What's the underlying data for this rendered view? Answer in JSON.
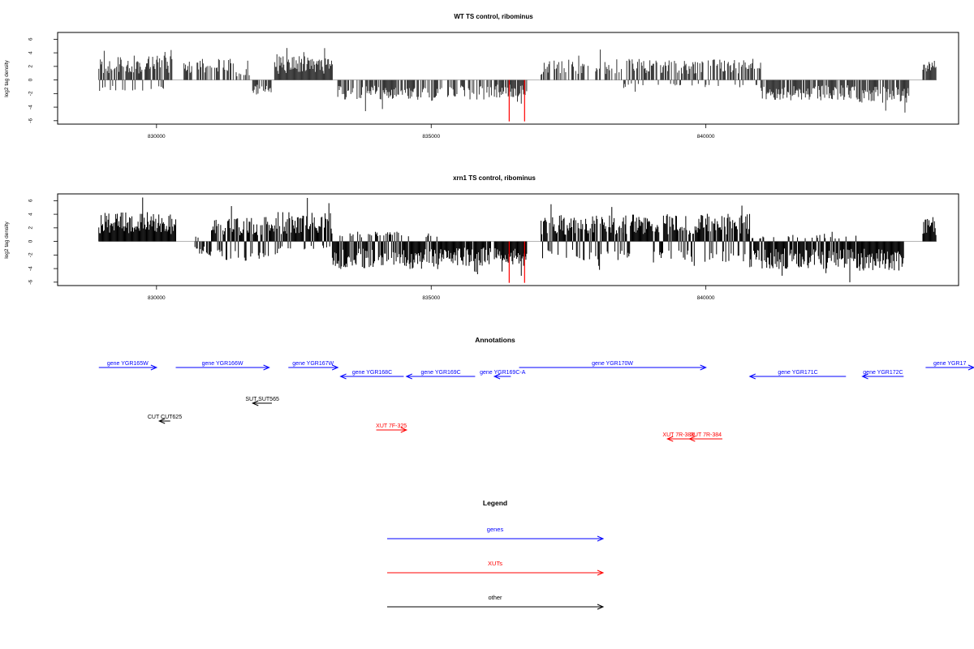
{
  "chart_data": [
    {
      "type": "bar",
      "title": "WT TS control, ribominus",
      "ylabel": "log2 tag density",
      "xlabel": "",
      "xlim": [
        828200,
        844600
      ],
      "ylim": [
        -6.5,
        7
      ],
      "y_ticks": [
        -6,
        -4,
        -2,
        0,
        2,
        4,
        6
      ],
      "x_ticks": [
        830000,
        835000,
        840000
      ],
      "x_tick_labels": [
        "830000",
        "835000",
        "840000"
      ],
      "bar_color": "#333333",
      "highlight_color": "#ff0000",
      "highlights": [
        {
          "x": 836420,
          "y": -6.1
        },
        {
          "x": 836700,
          "y": -6.1
        }
      ],
      "segments": [
        {
          "x0": 828950,
          "x1": 830300,
          "amp": 3.0,
          "min": -1.6,
          "density": 0.9,
          "seed": 11
        },
        {
          "x0": 830500,
          "x1": 831400,
          "amp": 2.6,
          "min": 0,
          "density": 0.6,
          "seed": 12
        },
        {
          "x0": 831450,
          "x1": 831700,
          "amp": 1.6,
          "min": 0,
          "density": 0.4,
          "seed": 13
        },
        {
          "x0": 831750,
          "x1": 832100,
          "amp": -2.0,
          "min": 0,
          "density": 0.6,
          "seed": 14
        },
        {
          "x0": 832150,
          "x1": 833200,
          "amp": 3.0,
          "min": 0,
          "density": 1.0,
          "seed": 15
        },
        {
          "x0": 833300,
          "x1": 835200,
          "amp": -2.6,
          "min": 0,
          "density": 0.7,
          "seed": 16
        },
        {
          "x0": 835300,
          "x1": 836100,
          "amp": -2.4,
          "min": 0,
          "density": 0.5,
          "seed": 17
        },
        {
          "x0": 836150,
          "x1": 836750,
          "amp": -2.2,
          "min": 0,
          "density": 0.9,
          "seed": 18
        },
        {
          "x0": 837000,
          "x1": 838300,
          "amp": 2.6,
          "min": 0,
          "density": 0.45,
          "seed": 19
        },
        {
          "x0": 838350,
          "x1": 841000,
          "amp": 2.6,
          "min": -1.0,
          "density": 0.7,
          "seed": 20
        },
        {
          "x0": 841000,
          "x1": 842700,
          "amp": -2.5,
          "min": 0,
          "density": 0.75,
          "seed": 21
        },
        {
          "x0": 842700,
          "x1": 843700,
          "amp": -2.8,
          "min": 0,
          "density": 0.8,
          "seed": 22
        },
        {
          "x0": 843950,
          "x1": 844200,
          "amp": 2.4,
          "min": 0,
          "density": 0.9,
          "seed": 23
        }
      ]
    },
    {
      "type": "bar",
      "title": "xrn1 TS control, ribominus",
      "ylabel": "log2 tag density",
      "xlabel": "",
      "xlim": [
        828200,
        844600
      ],
      "ylim": [
        -6.5,
        7
      ],
      "y_ticks": [
        -6,
        -4,
        -2,
        0,
        2,
        4,
        6
      ],
      "x_ticks": [
        830000,
        835000,
        840000
      ],
      "x_tick_labels": [
        "830000",
        "835000",
        "840000"
      ],
      "bar_color": "#000000",
      "highlight_color": "#ff0000",
      "highlights": [
        {
          "x": 836420,
          "y": -6.1
        },
        {
          "x": 836700,
          "y": -6.1
        }
      ],
      "segments": [
        {
          "x0": 828950,
          "x1": 830350,
          "amp": 3.6,
          "min": 0,
          "density": 1.0,
          "seed": 31
        },
        {
          "x0": 830700,
          "x1": 831000,
          "amp": -1.8,
          "min": 0.6,
          "density": 0.8,
          "seed": 32
        },
        {
          "x0": 831000,
          "x1": 832200,
          "amp": 3.0,
          "min": -2.4,
          "density": 1.0,
          "seed": 33
        },
        {
          "x0": 832200,
          "x1": 833200,
          "amp": 3.6,
          "min": -1.0,
          "density": 1.0,
          "seed": 34
        },
        {
          "x0": 833200,
          "x1": 835200,
          "amp": -3.4,
          "min": 1.2,
          "density": 1.0,
          "seed": 35
        },
        {
          "x0": 835200,
          "x1": 836100,
          "amp": -3.0,
          "min": 0,
          "density": 0.9,
          "seed": 36
        },
        {
          "x0": 836150,
          "x1": 836750,
          "amp": -3.0,
          "min": 0,
          "density": 1.0,
          "seed": 37
        },
        {
          "x0": 837000,
          "x1": 838500,
          "amp": 3.2,
          "min": -2.4,
          "density": 1.0,
          "seed": 38
        },
        {
          "x0": 838500,
          "x1": 840800,
          "amp": 3.4,
          "min": -2.6,
          "density": 1.0,
          "seed": 39
        },
        {
          "x0": 840800,
          "x1": 842800,
          "amp": -3.4,
          "min": 0.8,
          "density": 1.0,
          "seed": 40
        },
        {
          "x0": 842800,
          "x1": 843600,
          "amp": -3.6,
          "min": 0,
          "density": 1.0,
          "seed": 41
        },
        {
          "x0": 843950,
          "x1": 844200,
          "amp": 3.0,
          "min": 0,
          "density": 1.0,
          "seed": 42
        }
      ]
    }
  ],
  "annotations": {
    "title": "Annotations",
    "genes_color": "#0000ff",
    "xuts_color": "#ff0000",
    "other_color": "#000000",
    "features": [
      {
        "label": "gene YGR165W",
        "class": "genes",
        "start": 828950,
        "end": 830000,
        "strand": "+",
        "row": 0
      },
      {
        "label": "gene YGR166W",
        "class": "genes",
        "start": 830350,
        "end": 832050,
        "strand": "+",
        "row": 0
      },
      {
        "label": "gene YGR167W",
        "class": "genes",
        "start": 832400,
        "end": 833300,
        "strand": "+",
        "row": 0
      },
      {
        "label": "gene YGR168C",
        "class": "genes",
        "start": 833350,
        "end": 834500,
        "strand": "-",
        "row": 1
      },
      {
        "label": "gene YGR169C",
        "class": "genes",
        "start": 834550,
        "end": 835800,
        "strand": "-",
        "row": 1
      },
      {
        "label": "gene YGR169C-A",
        "class": "genes",
        "start": 836150,
        "end": 836450,
        "strand": "-",
        "row": 1
      },
      {
        "label": "gene YGR170W",
        "class": "genes",
        "start": 836600,
        "end": 840000,
        "strand": "+",
        "row": 0
      },
      {
        "label": "gene YGR171C",
        "class": "genes",
        "start": 840800,
        "end": 842550,
        "strand": "-",
        "row": 1
      },
      {
        "label": "gene YGR172C",
        "class": "genes",
        "start": 842850,
        "end": 843600,
        "strand": "-",
        "row": 1
      },
      {
        "label": "gene YGR17",
        "class": "genes",
        "start": 844000,
        "end": 845000,
        "strand": "+",
        "row": 0
      },
      {
        "label": "SUT SUT565",
        "class": "other",
        "start": 831750,
        "end": 832100,
        "strand": "-",
        "row": 4
      },
      {
        "label": "CUT CUT625",
        "class": "other",
        "start": 830050,
        "end": 830250,
        "strand": "-",
        "row": 6
      },
      {
        "label": "XUT 7F-325",
        "class": "xuts",
        "start": 834000,
        "end": 834550,
        "strand": "+",
        "row": 7
      },
      {
        "label": "XUT 7R-383",
        "class": "xuts",
        "start": 839300,
        "end": 839700,
        "strand": "-",
        "row": 8
      },
      {
        "label": "XUT 7R-384",
        "class": "xuts",
        "start": 839700,
        "end": 840300,
        "strand": "-",
        "row": 8
      }
    ]
  },
  "legend": {
    "title": "Legend",
    "items": [
      {
        "label": "genes",
        "color": "#0000ff"
      },
      {
        "label": "XUTs",
        "color": "#ff0000"
      },
      {
        "label": "other",
        "color": "#000000"
      }
    ]
  }
}
